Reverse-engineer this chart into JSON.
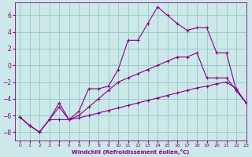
{
  "xlabel": "Windchill (Refroidissement éolien,°C)",
  "ylabel": "",
  "xlim": [
    -0.5,
    23
  ],
  "ylim": [
    -9,
    7.5
  ],
  "xticks": [
    0,
    1,
    2,
    3,
    4,
    5,
    6,
    7,
    8,
    9,
    10,
    11,
    12,
    13,
    14,
    15,
    16,
    17,
    18,
    19,
    20,
    21,
    22,
    23
  ],
  "yticks": [
    -8,
    -6,
    -4,
    -2,
    0,
    2,
    4,
    6
  ],
  "bg_color": "#cce8e8",
  "line_color": "#880088",
  "grid_color": "#99cccc",
  "lines": [
    {
      "x": [
        0,
        1,
        2,
        3,
        4,
        5,
        6,
        7,
        8,
        9,
        10,
        11,
        12,
        13,
        14,
        15,
        16,
        17,
        18,
        19,
        20,
        21,
        22,
        23
      ],
      "y": [
        -6.2,
        -7.2,
        -8.0,
        -6.5,
        -4.5,
        -6.5,
        -5.5,
        -2.8,
        -2.8,
        -2.5,
        -0.5,
        3.0,
        3.0,
        5.0,
        7.0,
        6.0,
        5.0,
        4.2,
        4.5,
        4.5,
        1.5,
        1.5,
        -3.0,
        -4.5
      ]
    },
    {
      "x": [
        0,
        1,
        2,
        3,
        4,
        5,
        6,
        7,
        8,
        9,
        10,
        11,
        12,
        13,
        14,
        15,
        16,
        17,
        18,
        19,
        20,
        21,
        22,
        23
      ],
      "y": [
        -6.2,
        -7.2,
        -8.0,
        -6.5,
        -5.0,
        -6.5,
        -6.0,
        -5.0,
        -4.0,
        -3.0,
        -2.0,
        -1.5,
        -1.0,
        -0.5,
        0.0,
        0.5,
        1.0,
        1.0,
        1.5,
        -1.5,
        -1.5,
        -1.5,
        -3.0,
        -4.5
      ]
    },
    {
      "x": [
        0,
        1,
        2,
        3,
        4,
        5,
        6,
        7,
        8,
        9,
        10,
        11,
        12,
        13,
        14,
        15,
        16,
        17,
        18,
        19,
        20,
        21,
        22,
        23
      ],
      "y": [
        -6.2,
        -7.2,
        -8.0,
        -6.5,
        -6.5,
        -6.5,
        -6.3,
        -6.0,
        -5.7,
        -5.4,
        -5.1,
        -4.8,
        -4.5,
        -4.2,
        -3.9,
        -3.6,
        -3.3,
        -3.0,
        -2.7,
        -2.5,
        -2.2,
        -2.0,
        -2.8,
        -4.5
      ]
    }
  ]
}
